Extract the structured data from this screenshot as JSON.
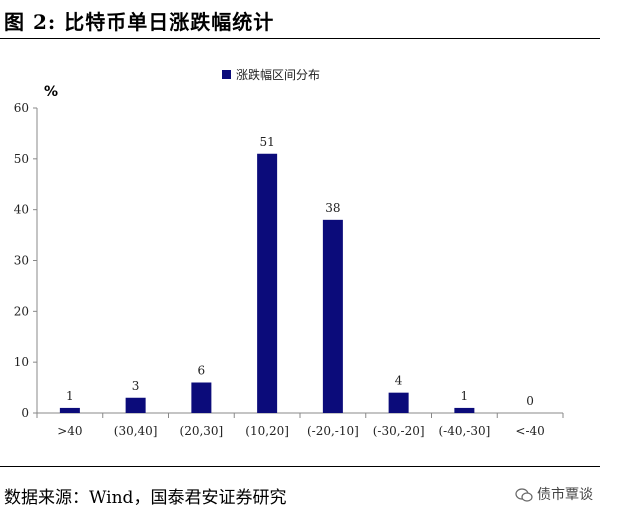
{
  "figure": {
    "title": "图  2:    比特币单日涨跌幅统计"
  },
  "source": {
    "text": "数据来源：Wind，国泰君安证券研究"
  },
  "watermark": {
    "text": "债市覃谈",
    "icon": "wechat-icon"
  },
  "chart_data": {
    "type": "bar",
    "title": "",
    "ylabel": "%",
    "xlabel": "",
    "ylim": [
      0,
      60
    ],
    "yticks": [
      0,
      10,
      20,
      30,
      40,
      50,
      60
    ],
    "legend": {
      "position": "top-center"
    },
    "grid": false,
    "categories": [
      ">40",
      "(30,40]",
      "(20,30]",
      "(10,20]",
      "(-20,-10]",
      "(-30,-20]",
      "(-40,-30]",
      "<-40"
    ],
    "series": [
      {
        "name": "涨跌幅区间分布",
        "color": "#0b0b7a",
        "values": [
          1,
          3,
          6,
          51,
          38,
          4,
          1,
          0
        ]
      }
    ]
  }
}
